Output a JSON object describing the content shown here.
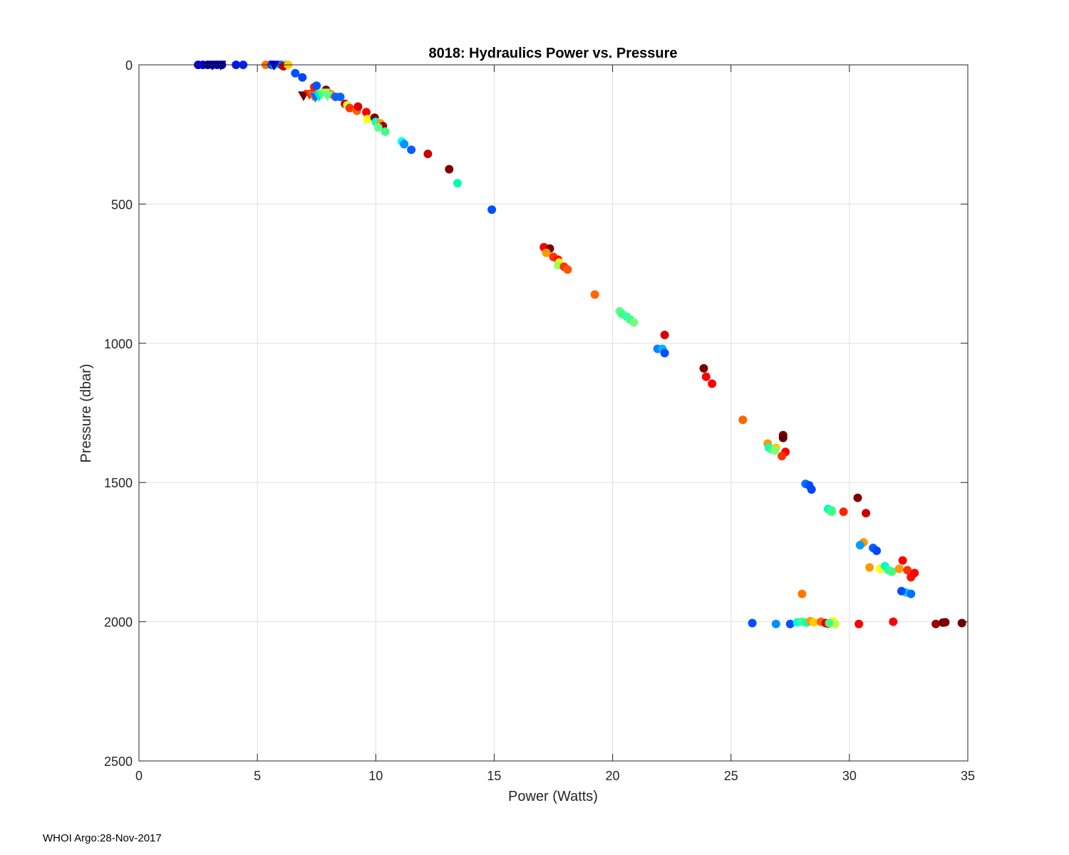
{
  "footer": {
    "note": "WHOI Argo:28-Nov-2017"
  },
  "chart_data": {
    "type": "scatter",
    "title": "8018: Hydraulics Power vs. Pressure",
    "xlabel": "Power (Watts)",
    "ylabel": "Pressure (dbar)",
    "xlim": [
      0,
      35
    ],
    "ylim": [
      0,
      2500
    ],
    "y_reversed": true,
    "grid": true,
    "xticks": [
      0,
      5,
      10,
      15,
      20,
      25,
      30,
      35
    ],
    "yticks": [
      0,
      500,
      1000,
      1500,
      2000,
      2500
    ],
    "colormap": "jet",
    "series": [
      {
        "name": "circles",
        "marker": "circle",
        "points": [
          [
            2.5,
            0,
            "#0000cc"
          ],
          [
            2.7,
            0,
            "#0000d4"
          ],
          [
            2.9,
            0,
            "#000088"
          ],
          [
            3.1,
            0,
            "#0000aa"
          ],
          [
            3.3,
            0,
            "#0000b4"
          ],
          [
            3.5,
            0,
            "#00008f"
          ],
          [
            4.1,
            0,
            "#0016ff"
          ],
          [
            4.4,
            0,
            "#0022ff"
          ],
          [
            5.35,
            0,
            "#ff7700"
          ],
          [
            5.6,
            0,
            "#0044ff"
          ],
          [
            5.7,
            0,
            "#00a0ff"
          ],
          [
            6.0,
            0,
            "#0070ff"
          ],
          [
            6.2,
            0,
            "#00e0e0"
          ],
          [
            6.1,
            5,
            "#cc0000"
          ],
          [
            6.3,
            0,
            "#ffcc00"
          ],
          [
            6.6,
            30,
            "#0050ff"
          ],
          [
            6.9,
            45,
            "#0044ff"
          ],
          [
            7.4,
            80,
            "#ff2000"
          ],
          [
            7.5,
            75,
            "#0055ff"
          ],
          [
            7.9,
            90,
            "#800000"
          ],
          [
            8.1,
            105,
            "#ff8800"
          ],
          [
            8.3,
            115,
            "#1060ff"
          ],
          [
            8.5,
            115,
            "#0066ff"
          ],
          [
            8.7,
            140,
            "#cc0000"
          ],
          [
            8.8,
            145,
            "#c8ff38"
          ],
          [
            8.9,
            155,
            "#ff3300"
          ],
          [
            9.2,
            165,
            "#ff6600"
          ],
          [
            9.25,
            150,
            "#dd0000"
          ],
          [
            9.6,
            170,
            "#ff0000"
          ],
          [
            9.65,
            195,
            "#ffff00"
          ],
          [
            9.95,
            190,
            "#800000"
          ],
          [
            10.0,
            205,
            "#00ffe0"
          ],
          [
            10.1,
            215,
            "#40ff80"
          ],
          [
            10.2,
            210,
            "#ff9900"
          ],
          [
            10.3,
            220,
            "#a00000"
          ],
          [
            10.1,
            225,
            "#60ff90"
          ],
          [
            10.4,
            240,
            "#40ff80"
          ],
          [
            11.1,
            275,
            "#00ffff"
          ],
          [
            11.2,
            285,
            "#0090ff"
          ],
          [
            11.5,
            305,
            "#0060ff"
          ],
          [
            12.2,
            320,
            "#cc0000"
          ],
          [
            13.1,
            375,
            "#800000"
          ],
          [
            13.45,
            425,
            "#00ffb0"
          ],
          [
            14.9,
            520,
            "#0050ff"
          ],
          [
            17.1,
            655,
            "#ff0000"
          ],
          [
            17.35,
            660,
            "#800000"
          ],
          [
            17.2,
            675,
            "#ff9900"
          ],
          [
            17.5,
            690,
            "#ff3300"
          ],
          [
            17.7,
            700,
            "#ff1100"
          ],
          [
            17.75,
            710,
            "#ffff00"
          ],
          [
            17.7,
            720,
            "#a0ff50"
          ],
          [
            17.95,
            725,
            "#ff3300"
          ],
          [
            18.1,
            735,
            "#ff5500"
          ],
          [
            19.25,
            825,
            "#ff6600"
          ],
          [
            20.3,
            885,
            "#60ff90"
          ],
          [
            20.4,
            895,
            "#40ff80"
          ],
          [
            20.6,
            905,
            "#30ffb0"
          ],
          [
            20.75,
            915,
            "#40ff80"
          ],
          [
            20.9,
            925,
            "#70ff80"
          ],
          [
            22.2,
            970,
            "#dd0000"
          ],
          [
            21.9,
            1020,
            "#1080ff"
          ],
          [
            22.1,
            1020,
            "#00b0ff"
          ],
          [
            22.2,
            1035,
            "#0050ff"
          ],
          [
            23.85,
            1090,
            "#800000"
          ],
          [
            23.95,
            1120,
            "#ff0000"
          ],
          [
            24.2,
            1145,
            "#ff0000"
          ],
          [
            25.5,
            1275,
            "#ff6600"
          ],
          [
            26.55,
            1360,
            "#ff9900"
          ],
          [
            26.6,
            1375,
            "#00ffe0"
          ],
          [
            26.7,
            1380,
            "#30ff90"
          ],
          [
            26.9,
            1375,
            "#ffcc00"
          ],
          [
            26.85,
            1385,
            "#80ff70"
          ],
          [
            27.2,
            1330,
            "#800000"
          ],
          [
            27.2,
            1340,
            "#600000"
          ],
          [
            27.3,
            1390,
            "#ff0000"
          ],
          [
            27.15,
            1405,
            "#ff3300"
          ],
          [
            28.15,
            1505,
            "#0070ff"
          ],
          [
            28.3,
            1510,
            "#0050ff"
          ],
          [
            28.4,
            1525,
            "#0044ff"
          ],
          [
            29.1,
            1595,
            "#00ffc0"
          ],
          [
            29.25,
            1600,
            "#30ffb0"
          ],
          [
            29.25,
            1605,
            "#40ff80"
          ],
          [
            29.75,
            1605,
            "#ff2200"
          ],
          [
            30.35,
            1555,
            "#800000"
          ],
          [
            30.7,
            1610,
            "#cc0000"
          ],
          [
            30.6,
            1715,
            "#ff9900"
          ],
          [
            30.45,
            1725,
            "#00a0ff"
          ],
          [
            31.0,
            1735,
            "#0060ff"
          ],
          [
            31.15,
            1745,
            "#0044ff"
          ],
          [
            30.85,
            1805,
            "#ff9900"
          ],
          [
            31.3,
            1810,
            "#ffff00"
          ],
          [
            31.5,
            1800,
            "#00ffc0"
          ],
          [
            31.65,
            1815,
            "#30ffb0"
          ],
          [
            31.8,
            1820,
            "#40ff80"
          ],
          [
            32.1,
            1810,
            "#ff9900"
          ],
          [
            32.25,
            1780,
            "#ff0000"
          ],
          [
            32.45,
            1815,
            "#ff3300"
          ],
          [
            32.6,
            1840,
            "#ff1100"
          ],
          [
            32.75,
            1825,
            "#ff0000"
          ],
          [
            32.4,
            1895,
            "#00ccff"
          ],
          [
            32.2,
            1890,
            "#0050ff"
          ],
          [
            32.6,
            1900,
            "#0070ff"
          ],
          [
            28.0,
            1900,
            "#ff7700"
          ],
          [
            25.9,
            2005,
            "#0050ff"
          ],
          [
            26.9,
            2008,
            "#0090ff"
          ],
          [
            27.5,
            2008,
            "#0050ff"
          ],
          [
            27.8,
            2002,
            "#00ffe0"
          ],
          [
            28.0,
            2000,
            "#40ff80"
          ],
          [
            28.2,
            2003,
            "#00ffc0"
          ],
          [
            28.35,
            1998,
            "#ff9900"
          ],
          [
            28.5,
            2002,
            "#ffcc00"
          ],
          [
            28.8,
            2000,
            "#ff6600"
          ],
          [
            29.0,
            2005,
            "#cc0000"
          ],
          [
            29.1,
            2007,
            "#ff0000"
          ],
          [
            29.3,
            1998,
            "#ffff00"
          ],
          [
            29.4,
            2008,
            "#c0ff40"
          ],
          [
            29.15,
            2005,
            "#40ff80"
          ],
          [
            30.4,
            2008,
            "#ff0000"
          ],
          [
            31.85,
            2000,
            "#ff0000"
          ],
          [
            33.65,
            2008,
            "#a00000"
          ],
          [
            33.95,
            2003,
            "#600000"
          ],
          [
            34.05,
            2002,
            "#800000"
          ],
          [
            34.75,
            2005,
            "#700000"
          ]
        ]
      },
      {
        "name": "triangles",
        "marker": "triangle-down",
        "points": [
          [
            6.95,
            110,
            "#700000"
          ],
          [
            7.2,
            105,
            "#ff2000"
          ],
          [
            7.35,
            110,
            "#ff6600"
          ],
          [
            7.45,
            115,
            "#0070ff"
          ],
          [
            7.6,
            112,
            "#00e0e0"
          ],
          [
            7.7,
            105,
            "#40ff80"
          ],
          [
            7.85,
            100,
            "#a0ff50"
          ],
          [
            7.95,
            110,
            "#60ff90"
          ],
          [
            3.1,
            0,
            "#000088"
          ],
          [
            3.45,
            0,
            "#000088"
          ],
          [
            5.7,
            0,
            "#0000cc"
          ]
        ]
      }
    ]
  }
}
